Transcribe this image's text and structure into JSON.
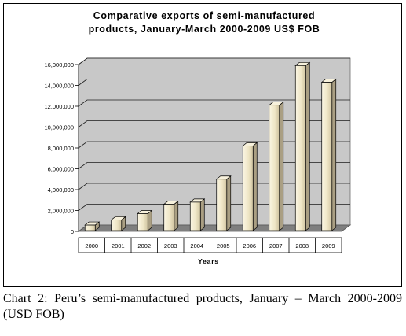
{
  "chart_data": {
    "type": "bar",
    "title_lines": [
      "Comparative exports of semi-manufactured",
      "products, January-March 2000-2009 US$ FOB"
    ],
    "xlabel": "Years",
    "ylabel": "",
    "categories": [
      "2000",
      "2001",
      "2002",
      "2003",
      "2004",
      "2005",
      "2006",
      "2007",
      "2008",
      "2009"
    ],
    "values": [
      600000,
      1100000,
      1700000,
      2600000,
      2800000,
      5000000,
      8200000,
      12100000,
      15900000,
      14300000
    ],
    "ylim": [
      0,
      16000000
    ],
    "yticks": [
      0,
      2000000,
      4000000,
      6000000,
      8000000,
      10000000,
      12000000,
      14000000,
      16000000
    ],
    "ytick_labels": [
      "0",
      "2,000,000",
      "4,000,000",
      "6,000,000",
      "8,000,000",
      "10,000,000",
      "12,000,000",
      "14,000,000",
      "16,000,000"
    ],
    "grid": true,
    "legend": "none",
    "colors": {
      "wall": "#c8c8c8",
      "floor": "#7f7f7f",
      "bar_front_light": "#fbf6e4",
      "bar_front_dark": "#cfc3a0",
      "bar_top": "#f7f1dc",
      "bar_side": "#aa9f83"
    }
  },
  "caption": "Chart 2: Peru’s semi-manufactured products, January – March 2000-2009 (USD FOB)"
}
